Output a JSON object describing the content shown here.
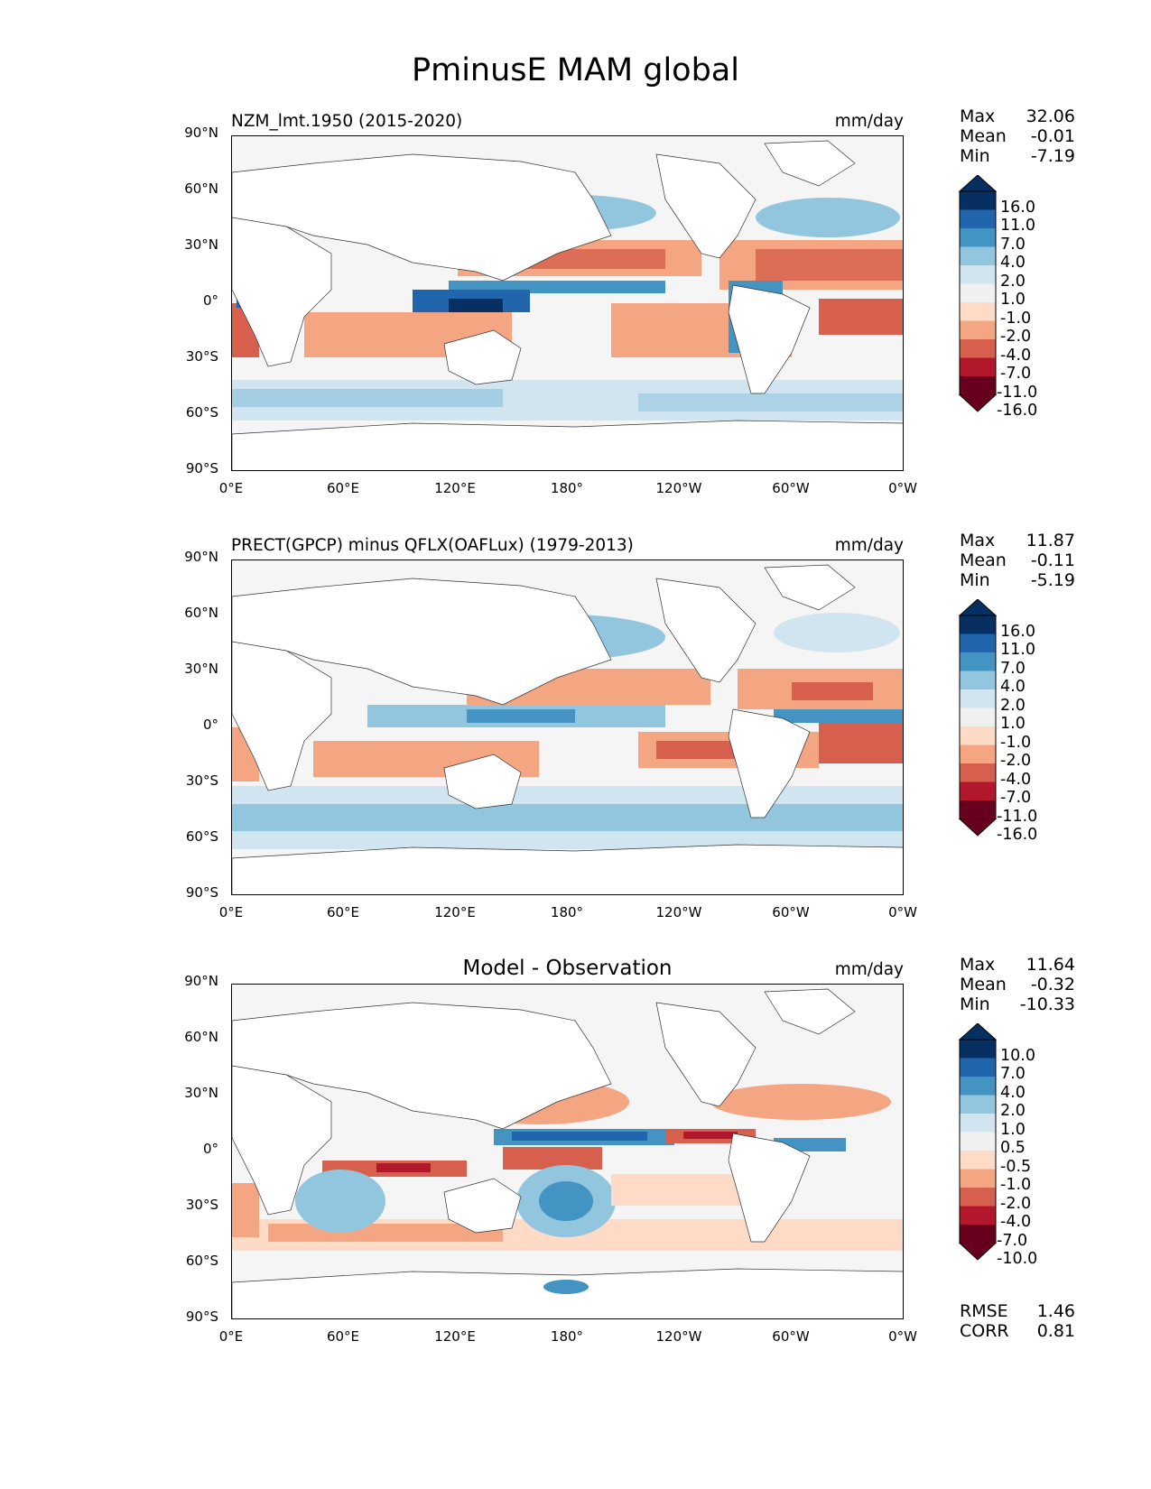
{
  "figure": {
    "title": "PminusE MAM global"
  },
  "axes": {
    "lat_ticks": [
      "90°N",
      "60°N",
      "30°N",
      "0°",
      "30°S",
      "60°S",
      "90°S"
    ],
    "lon_ticks": [
      "0°E",
      "60°E",
      "120°E",
      "180°",
      "120°W",
      "60°W",
      "0°W"
    ]
  },
  "panels": [
    {
      "title": "NZM_lmt.1950 (2015-2020)",
      "units": "mm/day",
      "stats": [
        {
          "label": "Max",
          "value": "32.06"
        },
        {
          "label": "Mean",
          "value": "-0.01"
        },
        {
          "label": "Min",
          "value": "-7.19"
        }
      ],
      "colorbar": {
        "levels": [
          "16.0",
          "11.0",
          "7.0",
          "4.0",
          "2.0",
          "1.0",
          "-1.0",
          "-2.0",
          "-4.0",
          "-7.0",
          "-11.0",
          "-16.0"
        ]
      }
    },
    {
      "title": "PRECT(GPCP) minus QFLX(OAFLux) (1979-2013)",
      "units": "mm/day",
      "stats": [
        {
          "label": "Max",
          "value": "11.87"
        },
        {
          "label": "Mean",
          "value": "-0.11"
        },
        {
          "label": "Min",
          "value": "-5.19"
        }
      ],
      "colorbar": {
        "levels": [
          "16.0",
          "11.0",
          "7.0",
          "4.0",
          "2.0",
          "1.0",
          "-1.0",
          "-2.0",
          "-4.0",
          "-7.0",
          "-11.0",
          "-16.0"
        ]
      }
    },
    {
      "title": "Model - Observation",
      "units": "mm/day",
      "stats": [
        {
          "label": "Max",
          "value": "11.64"
        },
        {
          "label": "Mean",
          "value": "-0.32"
        },
        {
          "label": "Min",
          "value": "-10.33"
        }
      ],
      "colorbar": {
        "levels": [
          "10.0",
          "7.0",
          "4.0",
          "2.0",
          "1.0",
          "0.5",
          "-0.5",
          "-1.0",
          "-2.0",
          "-4.0",
          "-7.0",
          "-10.0"
        ]
      },
      "metrics": [
        {
          "label": "RMSE",
          "value": "1.46"
        },
        {
          "label": "CORR",
          "value": "0.81"
        }
      ]
    }
  ],
  "colors": {
    "palette": [
      "#053061",
      "#2166ac",
      "#4393c3",
      "#92c5de",
      "#d1e5f0",
      "#f0f0f0",
      "#fddbc7",
      "#f4a582",
      "#d6604d",
      "#b2182b",
      "#67001f"
    ],
    "land": "#ffffff",
    "ocean_neutral": "#f5f5f5"
  }
}
